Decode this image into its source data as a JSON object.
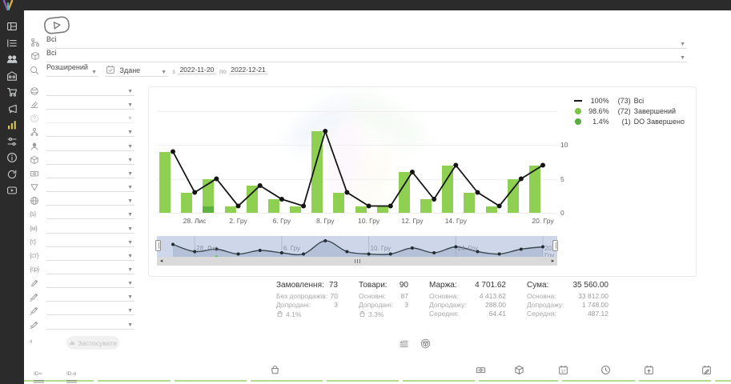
{
  "colors": {
    "bar": "#8fd052",
    "bar_do": "#5fb23e",
    "line": "#151515",
    "legend_done": "#7cc244",
    "legend_do": "#57ad3c",
    "nav_line": "#3c4852",
    "active_sidebar": "#d6c44e",
    "bottom_underline": "#b5d98d"
  },
  "sidebar": {
    "items": [
      {
        "icon": "dashboard-icon"
      },
      {
        "icon": "orders-list-icon"
      },
      {
        "icon": "customers-icon"
      },
      {
        "icon": "company-icon"
      },
      {
        "icon": "cart-icon"
      },
      {
        "icon": "marketing-icon"
      },
      {
        "icon": "analytics-icon",
        "active": true
      },
      {
        "icon": "automation-icon"
      },
      {
        "icon": "info-icon"
      },
      {
        "icon": "sync-icon"
      },
      {
        "icon": "video-icon"
      }
    ]
  },
  "filters": {
    "site": {
      "value": "Всі"
    },
    "product": {
      "value": "Всі"
    },
    "mode": {
      "value": "Розширений"
    },
    "date_field": {
      "value": "Здане"
    },
    "from_label": "з",
    "date_from": "2022-11-20",
    "to_label": "по",
    "date_to": "2022-12-21",
    "rows": [
      {
        "icon": "globe-ball-icon"
      },
      {
        "icon": "ruler-icon"
      },
      {
        "icon": "help-circle-icon",
        "disabled": true
      },
      {
        "icon": "sitemap-icon"
      },
      {
        "icon": "person-icon"
      },
      {
        "icon": "cube-icon"
      },
      {
        "icon": "banknote-icon"
      },
      {
        "icon": "funnel-icon"
      },
      {
        "icon": "globe-grid-icon"
      },
      {
        "icon": "brace",
        "label": "{s}"
      },
      {
        "icon": "brace",
        "label": "{м}"
      },
      {
        "icon": "brace",
        "label": "{т}"
      },
      {
        "icon": "brace",
        "label": "{ст}"
      },
      {
        "icon": "brace",
        "label": "{ср}"
      },
      {
        "icon": "pencil",
        "label": "1"
      },
      {
        "icon": "pencil",
        "label": "2"
      },
      {
        "icon": "pencil",
        "label": "3"
      },
      {
        "icon": "pencil",
        "label": "4"
      }
    ],
    "apply_label": "Застосувати"
  },
  "legend": [
    {
      "marker": "line",
      "color": "#151515",
      "percent": "100%",
      "count": "(73)",
      "label": "Всі"
    },
    {
      "marker": "dot",
      "color": "#7cc244",
      "percent": "98.6%",
      "count": "(72)",
      "label": "Завершений"
    },
    {
      "marker": "dot",
      "color": "#57ad3c",
      "percent": "1.4%",
      "count": "(1)",
      "label": "DO Завершено"
    }
  ],
  "chart_data": {
    "type": "bar",
    "title": "",
    "ylim": [
      0,
      15
    ],
    "yticks": [
      0,
      5,
      10
    ],
    "x_tick_labels": [
      "28. Лис",
      "2. Гру",
      "6. Гру",
      "8. Гру",
      "10. Гру",
      "12. Гру",
      "14. Гру",
      "20. Гру"
    ],
    "x_tick_indices": [
      1,
      3,
      5,
      7,
      9,
      11,
      13,
      17
    ],
    "series": [
      {
        "name": "Всі",
        "type": "line",
        "color": "#151515",
        "values": [
          9,
          3,
          5,
          1,
          4,
          2,
          1,
          12,
          3,
          1,
          1,
          6,
          2,
          7,
          3,
          1,
          5,
          7
        ]
      },
      {
        "name": "Завершений",
        "type": "bar",
        "color": "#8fd052",
        "values": [
          9,
          3,
          4,
          1,
          4,
          2,
          1,
          12,
          3,
          1,
          1,
          6,
          2,
          7,
          3,
          1,
          5,
          7
        ]
      },
      {
        "name": "DO Завершено",
        "type": "bar",
        "color": "#5fb23e",
        "values": [
          0,
          0,
          1,
          0,
          0,
          0,
          0,
          0,
          0,
          0,
          0,
          0,
          0,
          0,
          0,
          0,
          0,
          0
        ]
      }
    ],
    "navigator_labels": [
      "28. Лис",
      "6. Гру",
      "10. Гру",
      "14. Гру",
      "20. Гру"
    ],
    "navigator_label_indices": [
      1,
      5,
      9,
      13,
      17
    ]
  },
  "stats": {
    "blocks": [
      {
        "title": "Замовлення:",
        "value": "73",
        "rows": [
          [
            "Без допродажів:",
            "70"
          ],
          [
            "Допродані:",
            "3"
          ]
        ],
        "upsell": "4.1%"
      },
      {
        "title": "Товари:",
        "value": "90",
        "rows": [
          [
            "Основні:",
            "87"
          ],
          [
            "Допродані:",
            "3"
          ]
        ],
        "upsell": "3.3%"
      },
      {
        "title": "Маржа:",
        "value": "4 701.62",
        "rows": [
          [
            "Основна:",
            "4 413.62"
          ],
          [
            "Допродажу:",
            "288.00"
          ],
          [
            "Середня:",
            "64.41"
          ]
        ]
      },
      {
        "title": "Сума:",
        "value": "35 560.00",
        "rows": [
          [
            "Основна:",
            "33 812.00"
          ],
          [
            "Допродажу:",
            "1 748.00"
          ],
          [
            "Середня:",
            "487.12"
          ]
        ]
      }
    ]
  },
  "view_toggles": [
    {
      "icon": "list-chart-icon"
    },
    {
      "icon": "cube-circle-icon"
    }
  ],
  "bottom_bar": {
    "icons": [
      {
        "icon": "id-eq-icon",
        "text": "ID="
      },
      {
        "icon": "id-o-icon",
        "text": "ID-o"
      },
      {
        "icon": "bag-icon"
      },
      {
        "icon": "banknote-icon"
      },
      {
        "icon": "cube-icon"
      },
      {
        "icon": "calendar-17-icon"
      },
      {
        "icon": "clock-icon"
      },
      {
        "icon": "calendar-up-icon"
      },
      {
        "icon": "calendar-edit-icon"
      }
    ]
  }
}
